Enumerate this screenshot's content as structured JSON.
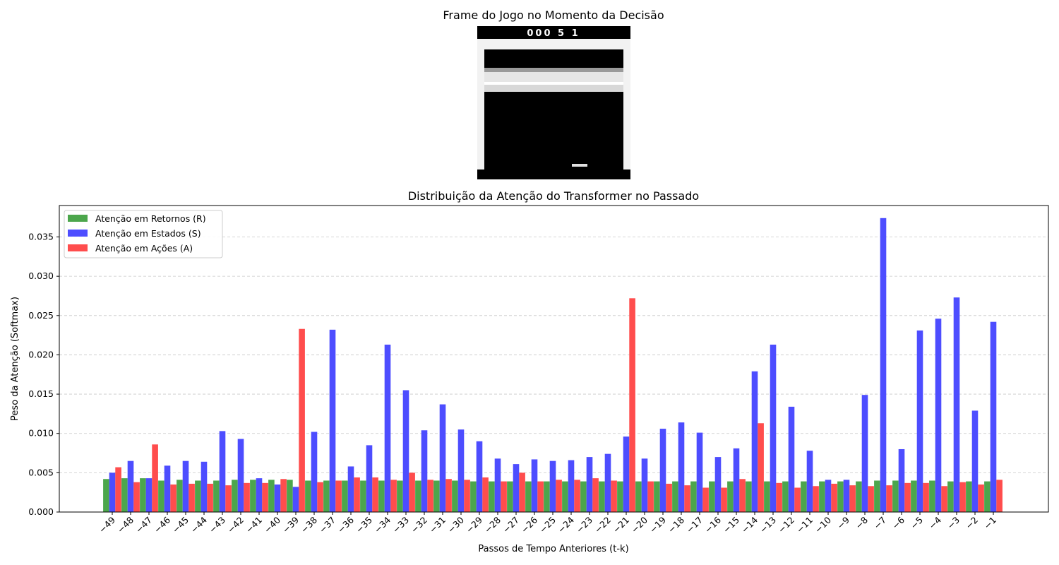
{
  "frame": {
    "title": "Frame do Jogo no Momento da Decisão",
    "score_text": "000 5 1"
  },
  "chart_data": {
    "type": "bar",
    "title": "Distribuição da Atenção do Transformer no Passado",
    "xlabel": "Passos de Tempo Anteriores (t-k)",
    "ylabel": "Peso da Atenção (Softmax)",
    "ylim": [
      0,
      0.039
    ],
    "yticks": [
      "0.000",
      "0.005",
      "0.010",
      "0.015",
      "0.020",
      "0.025",
      "0.030",
      "0.035"
    ],
    "grid": "y dashed",
    "legend_position": "top-left",
    "categories": [
      "−49",
      "−48",
      "−47",
      "−46",
      "−45",
      "−44",
      "−43",
      "−42",
      "−41",
      "−40",
      "−39",
      "−38",
      "−37",
      "−36",
      "−35",
      "−34",
      "−33",
      "−32",
      "−31",
      "−30",
      "−29",
      "−28",
      "−27",
      "−26",
      "−25",
      "−24",
      "−23",
      "−22",
      "−21",
      "−20",
      "−19",
      "−18",
      "−17",
      "−16",
      "−15",
      "−14",
      "−13",
      "−12",
      "−11",
      "−10",
      "−9",
      "−8",
      "−7",
      "−6",
      "−5",
      "−4",
      "−3",
      "−2",
      "−1"
    ],
    "series": [
      {
        "name": "Atenção em Retornos (R)",
        "color": "#4ca64c",
        "values": [
          0.0042,
          0.0043,
          0.0043,
          0.004,
          0.0041,
          0.004,
          0.004,
          0.0041,
          0.0041,
          0.0041,
          0.0041,
          0.004,
          0.004,
          0.004,
          0.004,
          0.004,
          0.004,
          0.004,
          0.004,
          0.004,
          0.0039,
          0.0039,
          0.0039,
          0.0039,
          0.0039,
          0.0039,
          0.0039,
          0.0039,
          0.0039,
          0.0039,
          0.0039,
          0.0039,
          0.0039,
          0.0039,
          0.0039,
          0.0039,
          0.0039,
          0.0039,
          0.0039,
          0.0039,
          0.0039,
          0.0039,
          0.004,
          0.004,
          0.004,
          0.004,
          0.0039,
          0.0039,
          0.0039
        ]
      },
      {
        "name": "Atenção em Estados (S)",
        "color": "#4d4dff",
        "values": [
          0.005,
          0.0065,
          0.0043,
          0.0059,
          0.0065,
          0.0064,
          0.0103,
          0.0093,
          0.0043,
          0.0035,
          0.0032,
          0.0102,
          0.0232,
          0.0058,
          0.0085,
          0.0213,
          0.0155,
          0.0104,
          0.0137,
          0.0105,
          0.009,
          0.0068,
          0.0061,
          0.0067,
          0.0065,
          0.0066,
          0.007,
          0.0074,
          0.0096,
          0.0068,
          0.0106,
          0.0114,
          0.0101,
          0.007,
          0.0081,
          0.0179,
          0.0213,
          0.0134,
          0.0078,
          0.0041,
          0.0041,
          0.0149,
          0.0374,
          0.008,
          0.0231,
          0.0246,
          0.0273,
          0.0129,
          0.0242
        ]
      },
      {
        "name": "Atenção em Ações (A)",
        "color": "#ff4d4d",
        "values": [
          0.0057,
          0.0038,
          0.0086,
          0.0035,
          0.0036,
          0.0036,
          0.0034,
          0.0037,
          0.0037,
          0.0042,
          0.0233,
          0.0038,
          0.004,
          0.0044,
          0.0044,
          0.0041,
          0.005,
          0.0041,
          0.0042,
          0.0041,
          0.0044,
          0.0039,
          0.005,
          0.0039,
          0.0041,
          0.0041,
          0.0043,
          0.004,
          0.0272,
          0.0039,
          0.0036,
          0.0034,
          0.0031,
          0.0031,
          0.0042,
          0.0113,
          0.0037,
          0.0031,
          0.0033,
          0.0036,
          0.0034,
          0.0033,
          0.0034,
          0.0037,
          0.0037,
          0.0033,
          0.0038,
          0.0035,
          0.0041
        ]
      }
    ]
  }
}
